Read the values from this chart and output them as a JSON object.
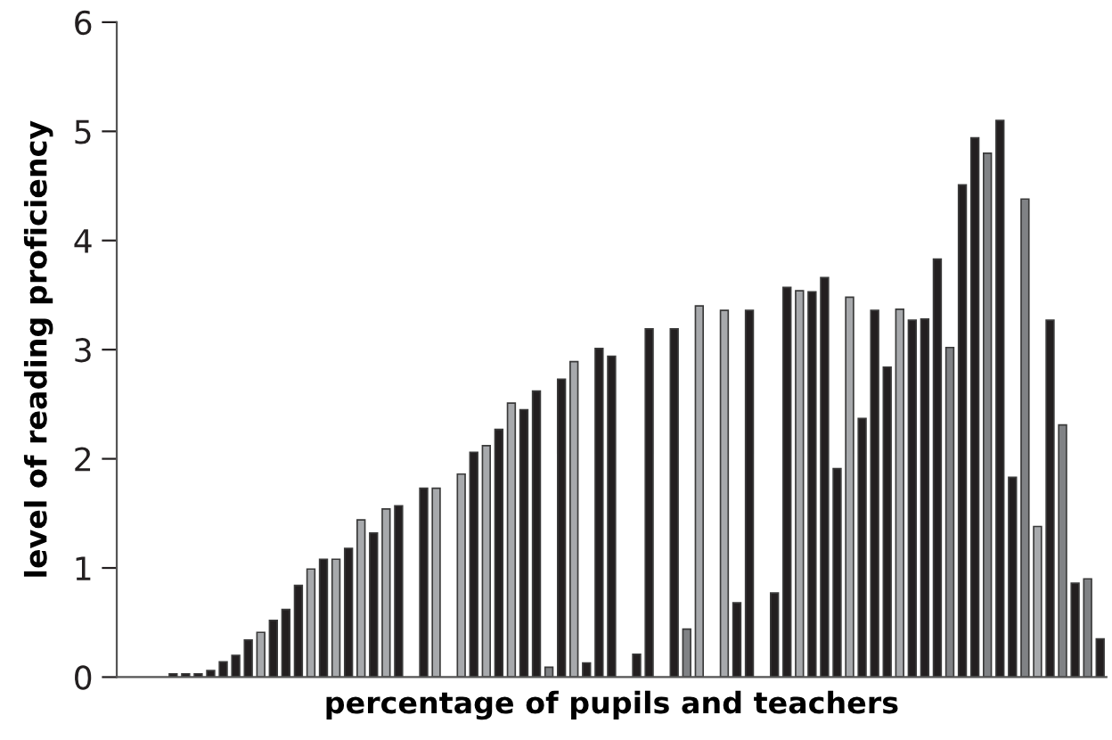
{
  "chart_data": {
    "type": "bar",
    "xlabel": "percentage of pupils and teachers",
    "ylabel": "level of reading proficiency",
    "categories": [
      null,
      null,
      null,
      null,
      null,
      null,
      null,
      null,
      null,
      null,
      null,
      null,
      null,
      null,
      null,
      null,
      null,
      null,
      null,
      null,
      null,
      null,
      null,
      null,
      null,
      null,
      null,
      null,
      null,
      null,
      null,
      null,
      null,
      null,
      null,
      null,
      null,
      null,
      null,
      null,
      null,
      null,
      null,
      null,
      null,
      null,
      null,
      null,
      null,
      null,
      null,
      null,
      null,
      null,
      null,
      null,
      null,
      null,
      null,
      null,
      null,
      null,
      null,
      null,
      null,
      null,
      null,
      null,
      null,
      null,
      null,
      null,
      null,
      null,
      null,
      null,
      null,
      null,
      null
    ],
    "values": [
      null,
      null,
      null,
      null,
      0.03,
      0.03,
      0.03,
      0.06,
      0.14,
      0.2,
      0.34,
      0.41,
      0.52,
      0.62,
      0.84,
      0.99,
      1.08,
      1.08,
      1.18,
      1.44,
      1.32,
      1.54,
      1.57,
      null,
      1.73,
      1.73,
      null,
      1.86,
      2.06,
      2.12,
      2.27,
      2.51,
      2.45,
      2.62,
      0.09,
      2.73,
      2.89,
      0.13,
      3.01,
      2.94,
      null,
      0.21,
      3.19,
      null,
      3.19,
      0.44,
      3.4,
      null,
      3.36,
      0.68,
      3.36,
      null,
      0.77,
      3.57,
      3.54,
      3.53,
      3.66,
      1.91,
      3.48,
      2.37,
      3.36,
      2.84,
      3.37,
      3.27,
      3.28,
      3.83,
      3.02,
      4.51,
      4.94,
      4.8,
      5.1,
      1.83,
      4.38,
      1.38,
      3.27,
      2.31,
      0.86,
      0.9,
      0.35
    ],
    "colors": [
      "#231f20",
      "#231f20",
      "#231f20",
      "#231f20",
      "#231f20",
      "#231f20",
      "#231f20",
      "#231f20",
      "#231f20",
      "#231f20",
      "#231f20",
      "#a7a9ac",
      "#231f20",
      "#231f20",
      "#231f20",
      "#a7a9ac",
      "#231f20",
      "#a7a9ac",
      "#231f20",
      "#a7a9ac",
      "#231f20",
      "#a7a9ac",
      "#231f20",
      "#231f20",
      "#231f20",
      "#a7a9ac",
      "#231f20",
      "#a7a9ac",
      "#231f20",
      "#a7a9ac",
      "#231f20",
      "#a7a9ac",
      "#231f20",
      "#231f20",
      "#808285",
      "#231f20",
      "#a7a9ac",
      "#231f20",
      "#231f20",
      "#231f20",
      "#231f20",
      "#231f20",
      "#231f20",
      "#231f20",
      "#231f20",
      "#808285",
      "#a7a9ac",
      "#231f20",
      "#a7a9ac",
      "#231f20",
      "#231f20",
      "#231f20",
      "#231f20",
      "#231f20",
      "#a7a9ac",
      "#231f20",
      "#231f20",
      "#231f20",
      "#a7a9ac",
      "#231f20",
      "#231f20",
      "#231f20",
      "#a7a9ac",
      "#231f20",
      "#231f20",
      "#231f20",
      "#808285",
      "#231f20",
      "#231f20",
      "#808285",
      "#231f20",
      "#231f20",
      "#808285",
      "#a7a9ac",
      "#231f20",
      "#808285",
      "#231f20",
      "#808285",
      "#231f20"
    ],
    "ylim": [
      0,
      6
    ],
    "yticks": [
      0,
      1,
      2,
      3,
      4,
      5,
      6
    ],
    "grid": false,
    "legend": false
  }
}
